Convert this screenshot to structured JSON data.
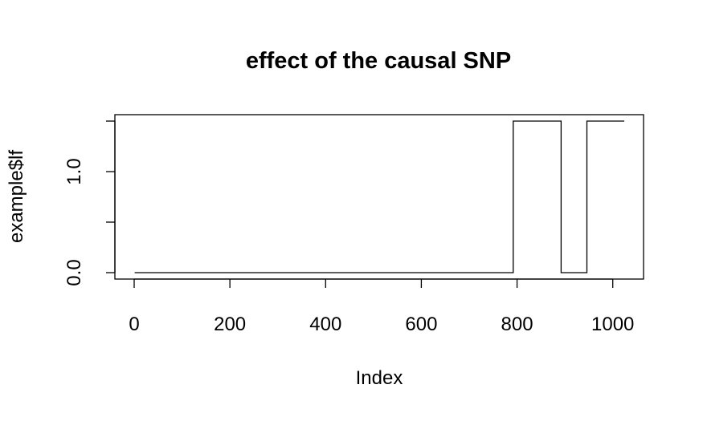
{
  "chart_data": {
    "type": "line",
    "title": "effect of the causal SNP",
    "xlabel": "Index",
    "ylabel": "example$lf",
    "xlim": [
      0,
      1024
    ],
    "ylim": [
      0,
      1.5
    ],
    "x_ticks": [
      0,
      200,
      400,
      600,
      800,
      1000
    ],
    "y_ticks": [
      0.0,
      0.5,
      1.0,
      1.5
    ],
    "x_tick_labels": [
      "0",
      "200",
      "400",
      "600",
      "800",
      "1000"
    ],
    "y_tick_labels": [
      "0.0",
      "1.0"
    ],
    "y_label_positions": [
      0.0,
      1.0
    ],
    "series": [
      {
        "x": [
          1,
          792,
          792,
          892,
          892,
          946,
          946,
          1024
        ],
        "y": [
          0,
          0,
          1.5,
          1.5,
          0,
          0,
          1.5,
          1.5
        ]
      }
    ],
    "grid": false,
    "legend": "none"
  }
}
